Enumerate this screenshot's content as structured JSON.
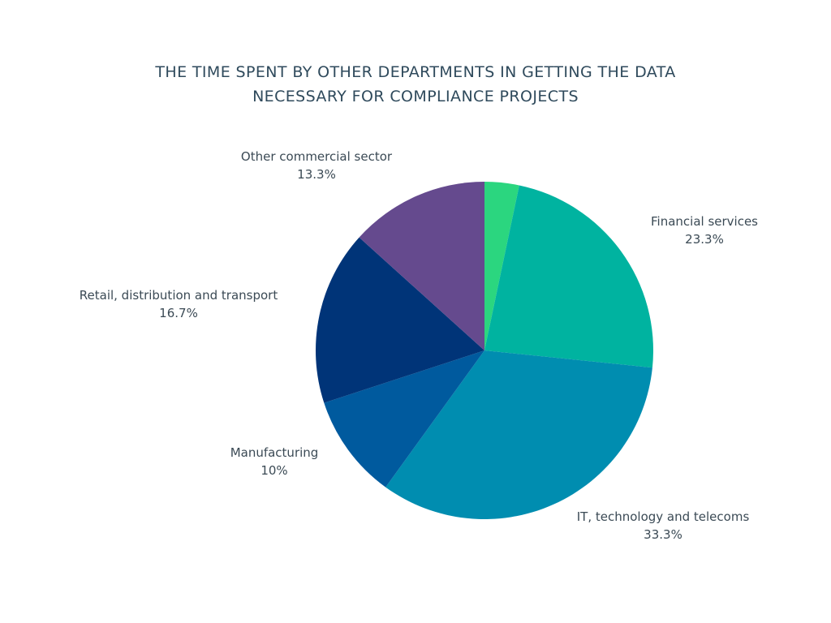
{
  "chart_data": {
    "type": "pie",
    "title_lines": [
      "THE TIME SPENT BY OTHER DEPARTMENTS IN GETTING THE DATA",
      "NECESSARY FOR COMPLIANCE PROJECTS"
    ],
    "slices": [
      {
        "value": 3.3,
        "color": "#2bd67f",
        "name": "",
        "label": ""
      },
      {
        "name": "Financial services",
        "label": "23.3%",
        "value": 23.3,
        "color": "#00b3a0"
      },
      {
        "name": "IT, technology and telecoms",
        "label": "33.3%",
        "value": 33.3,
        "color": "#008db0"
      },
      {
        "name": "Manufacturing",
        "label": "10%",
        "value": 10.0,
        "color": "#005a9e"
      },
      {
        "name": "Retail, distribution and transport",
        "label": "16.7%",
        "value": 16.7,
        "color": "#003478"
      },
      {
        "name": "Other commercial sector",
        "label": "13.3%",
        "value": 13.3,
        "color": "#654a8e"
      }
    ]
  }
}
